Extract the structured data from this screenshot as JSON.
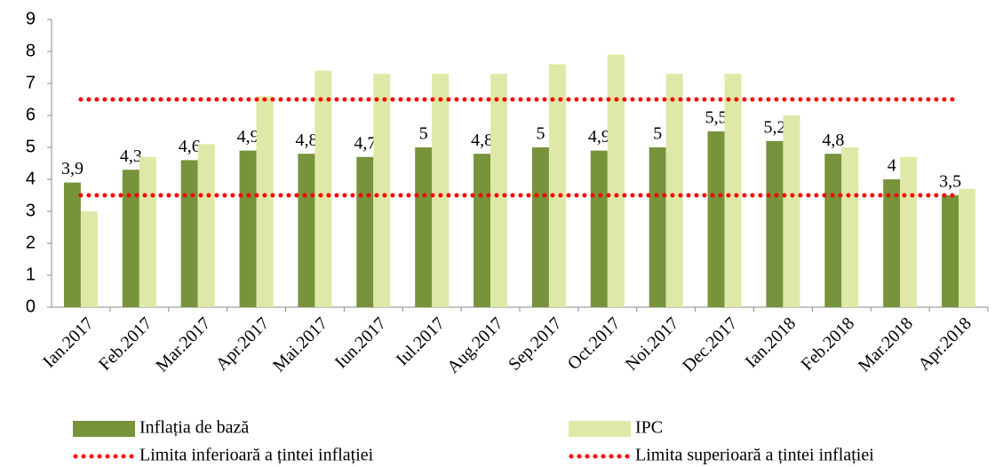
{
  "chart_data": {
    "type": "bar",
    "categories": [
      "Ian.2017",
      "Feb.2017",
      "Mar.2017",
      "Apr.2017",
      "Mai.2017",
      "Iun.2017",
      "Iul.2017",
      "Aug.2017",
      "Sep.2017",
      "Oct.2017",
      "Noi.2017",
      "Dec.2017",
      "Ian.2018",
      "Feb.2018",
      "Mar.2018",
      "Apr.2018"
    ],
    "series": [
      {
        "name": "Inflația de bază",
        "type": "bar",
        "color": "#77933c",
        "values": [
          3.9,
          4.3,
          4.6,
          4.9,
          4.8,
          4.7,
          5,
          4.8,
          5,
          4.9,
          5,
          5.5,
          5.2,
          4.8,
          4,
          3.5
        ],
        "value_labels": [
          "3,9",
          "4,3",
          "4,6",
          "4,9",
          "4,8",
          "4,7",
          "5",
          "4,8",
          "5",
          "4,9",
          "5",
          "5,5",
          "5,2",
          "4,8",
          "4",
          "3,5"
        ]
      },
      {
        "name": "IPC",
        "type": "bar",
        "color": "#dfe8a6",
        "values": [
          3.0,
          4.7,
          5.1,
          6.6,
          7.4,
          7.3,
          7.3,
          7.3,
          7.6,
          7.9,
          7.3,
          7.3,
          6.0,
          5.0,
          4.7,
          3.7
        ]
      },
      {
        "name": "Limita inferioară a țintei inflației",
        "type": "line",
        "color": "#ff0000",
        "values": [
          3.5,
          3.5,
          3.5,
          3.5,
          3.5,
          3.5,
          3.5,
          3.5,
          3.5,
          3.5,
          3.5,
          3.5,
          3.5,
          3.5,
          3.5,
          3.5
        ]
      },
      {
        "name": "Limita superioară a țintei inflației",
        "type": "line",
        "color": "#ff0000",
        "values": [
          6.5,
          6.5,
          6.5,
          6.5,
          6.5,
          6.5,
          6.5,
          6.5,
          6.5,
          6.5,
          6.5,
          6.5,
          6.5,
          6.5,
          6.5,
          6.5
        ]
      }
    ],
    "ylim": [
      0,
      9
    ],
    "yticks": [
      0,
      1,
      2,
      3,
      4,
      5,
      6,
      7,
      8,
      9
    ]
  }
}
